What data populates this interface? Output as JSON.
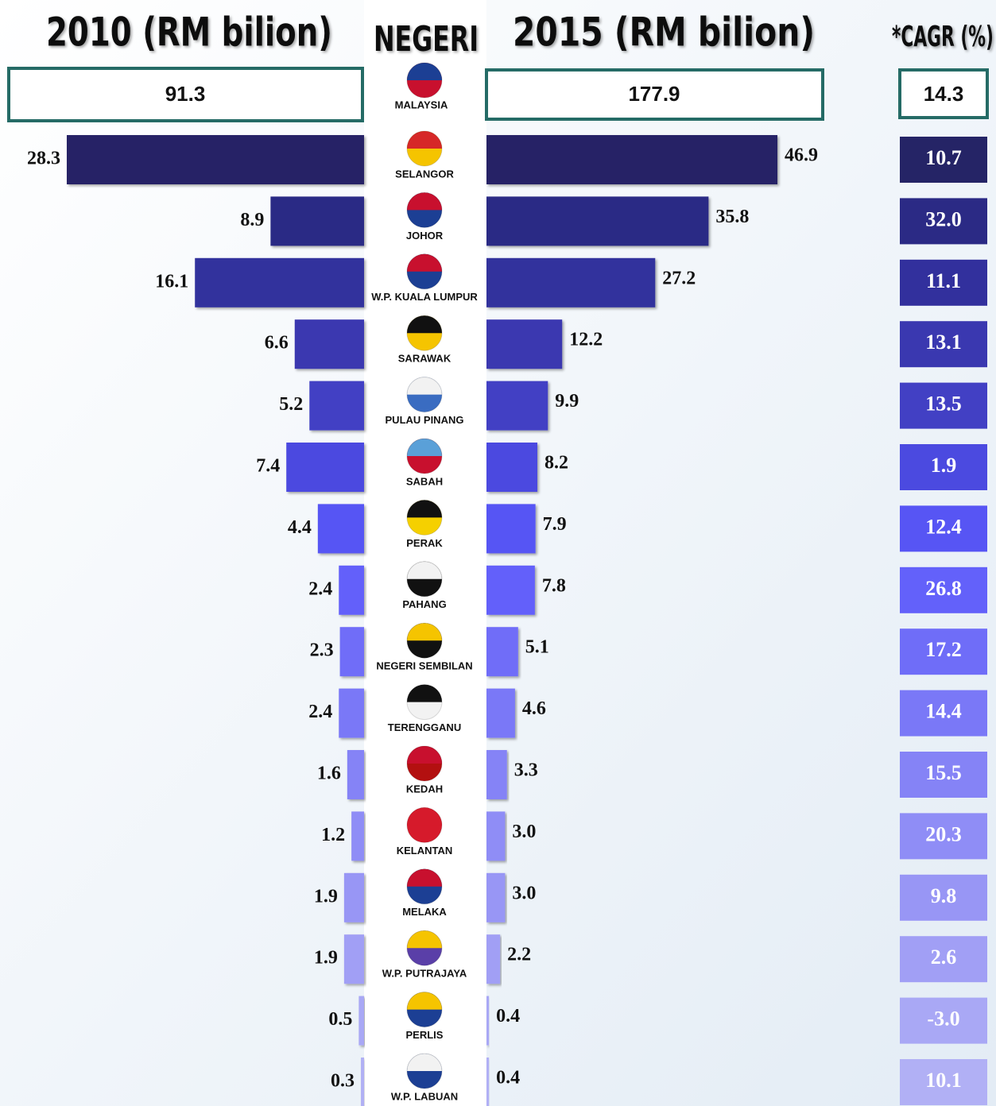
{
  "chart_data": {
    "type": "butterfly",
    "category_title": "NEGERI",
    "categories": [
      "SELANGOR",
      "JOHOR",
      "W.P. KUALA LUMPUR",
      "SARAWAK",
      "PULAU PINANG",
      "SABAH",
      "PERAK",
      "PAHANG",
      "NEGERI SEMBILAN",
      "TERENGGANU",
      "KEDAH",
      "KELANTAN",
      "MELAKA",
      "W.P. PUTRAJAYA",
      "PERLIS",
      "W.P. LABUAN"
    ],
    "colors": [
      "#252466",
      "#2b2a85",
      "#32309d",
      "#3a38b0",
      "#4240c4",
      "#4b4ae0",
      "#5755f4",
      "#6361fa",
      "#6f6df8",
      "#7a78f7",
      "#8583f6",
      "#8f8df6",
      "#9896f5",
      "#a19ff5",
      "#a9a8f5",
      "#b1b0f5"
    ],
    "total": {
      "name": "MALAYSIA",
      "values": [
        91.3,
        177.9,
        14.3
      ],
      "border": "#256b66"
    },
    "series": [
      {
        "name": "2010 (RM bilion)",
        "values": [
          28.3,
          8.9,
          16.1,
          6.6,
          5.2,
          7.4,
          4.4,
          2.4,
          2.3,
          2.4,
          1.6,
          1.2,
          1.9,
          1.9,
          0.5,
          0.3
        ]
      },
      {
        "name": "2015 (RM bilion)",
        "values": [
          46.9,
          35.8,
          27.2,
          12.2,
          9.9,
          8.2,
          7.9,
          7.8,
          5.1,
          4.6,
          3.3,
          3,
          3,
          2.2,
          0.4,
          0.4
        ],
        "value_labels": [
          "46.9",
          "35.8",
          "27.2",
          "12.2",
          "9.9",
          "8.2",
          "7.9",
          "7.8",
          "5.1",
          "4.6",
          "3.3",
          "3.0",
          "3.0",
          "2.2",
          "0.4",
          "0.4"
        ]
      },
      {
        "name": "*CAGR (%)",
        "values": [
          10.7,
          32,
          11.1,
          13.1,
          13.5,
          1.9,
          12.4,
          26.8,
          17.2,
          14.4,
          15.5,
          20.3,
          9.8,
          2.6,
          -3,
          10.1
        ],
        "value_labels": [
          "10.7",
          "32.0",
          "11.1",
          "13.1",
          "13.5",
          "1.9",
          "12.4",
          "26.8",
          "17.2",
          "14.4",
          "15.5",
          "20.3",
          "9.8",
          "2.6",
          "-3.0",
          "10.1"
        ]
      }
    ]
  }
}
